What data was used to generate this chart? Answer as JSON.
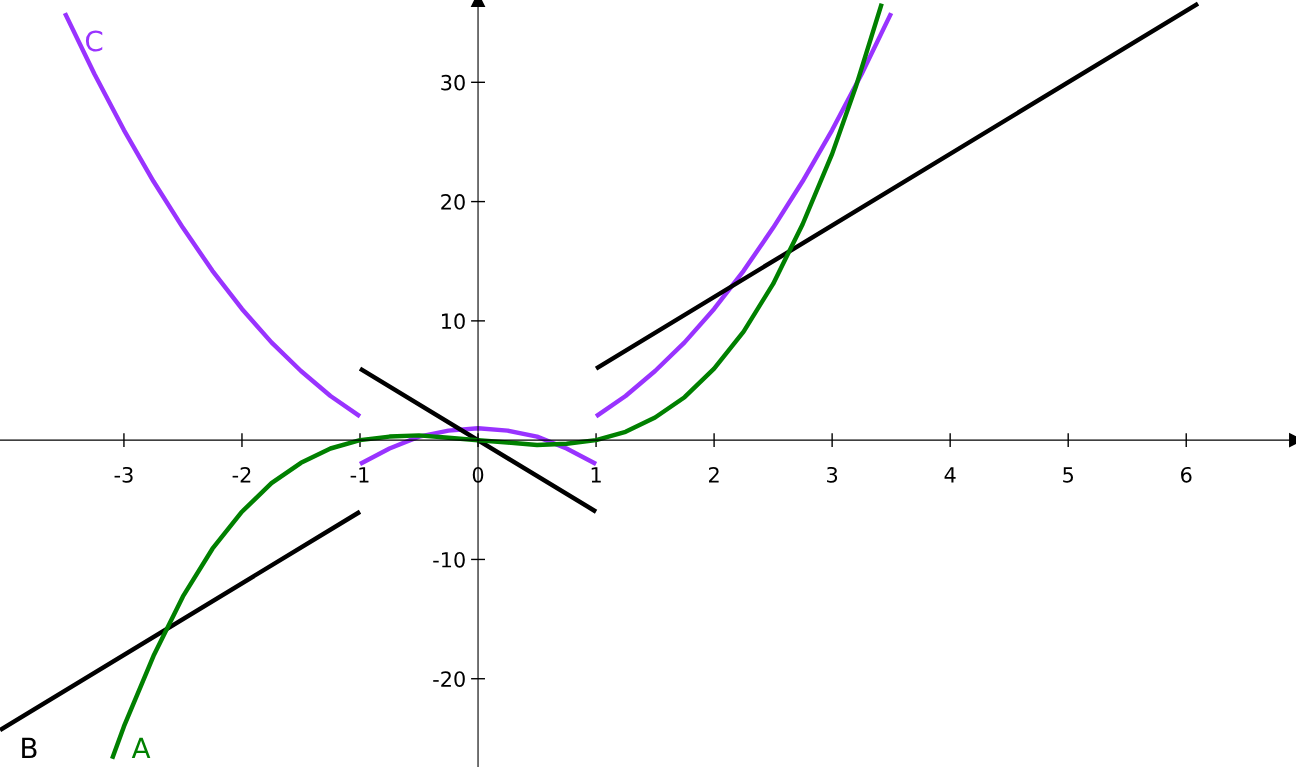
{
  "chart_data": {
    "type": "line",
    "xlim": [
      -4.05,
      6.93
    ],
    "ylim": [
      -27.4,
      36.9
    ],
    "xticks": [
      -3,
      -2,
      -1,
      0,
      1,
      2,
      3,
      4,
      5,
      6
    ],
    "yticks": [
      -20,
      -10,
      10,
      20,
      30
    ],
    "series": [
      {
        "name": "C",
        "color": "#9933ff",
        "x": [
          -3.5,
          -3.25,
          -3,
          -2.75,
          -2.5,
          -2.25,
          -2,
          -1.75,
          -1.5,
          -1.25,
          -1,
          null,
          -1,
          -0.75,
          -0.5,
          -0.25,
          0,
          0.25,
          0.5,
          0.75,
          1,
          null,
          1,
          1.25,
          1.5,
          1.75,
          2,
          2.25,
          2.5,
          2.75,
          3,
          3.25,
          3.5
        ],
        "values": [
          35.8,
          30.7,
          26,
          21.7,
          17.8,
          14.2,
          11,
          8.2,
          5.8,
          3.7,
          2,
          null,
          -2,
          -0.7,
          0.3,
          0.8,
          1,
          0.8,
          0.3,
          -0.7,
          -2,
          null,
          2,
          3.7,
          5.8,
          8.2,
          11,
          14.2,
          17.8,
          21.7,
          26,
          30.7,
          35.8
        ]
      },
      {
        "name": "B",
        "color": "#000000",
        "x": [
          -4.05,
          -1,
          null,
          -1,
          1,
          null,
          1,
          6.1
        ],
        "values": [
          -24.3,
          -6,
          null,
          6,
          -6,
          null,
          6,
          36.6
        ]
      },
      {
        "name": "A",
        "color": "#008000",
        "x": [
          -3.1,
          -3,
          -2.75,
          -2.5,
          -2.25,
          -2,
          -1.75,
          -1.5,
          -1.25,
          -1,
          -0.75,
          -0.5,
          -0.25,
          0,
          0.25,
          0.5,
          0.75,
          1,
          1.25,
          1.5,
          1.75,
          2,
          2.25,
          2.5,
          2.75,
          3,
          3.2,
          3.42
        ],
        "values": [
          -26.7,
          -24,
          -18.1,
          -13.1,
          -9.1,
          -6,
          -3.6,
          -1.9,
          -0.7,
          0,
          0.3,
          0.4,
          0.2,
          0,
          -0.2,
          -0.4,
          -0.3,
          0,
          0.7,
          1.9,
          3.6,
          6,
          9.1,
          13.1,
          18.1,
          24,
          29.6,
          36.6
        ]
      }
    ]
  }
}
